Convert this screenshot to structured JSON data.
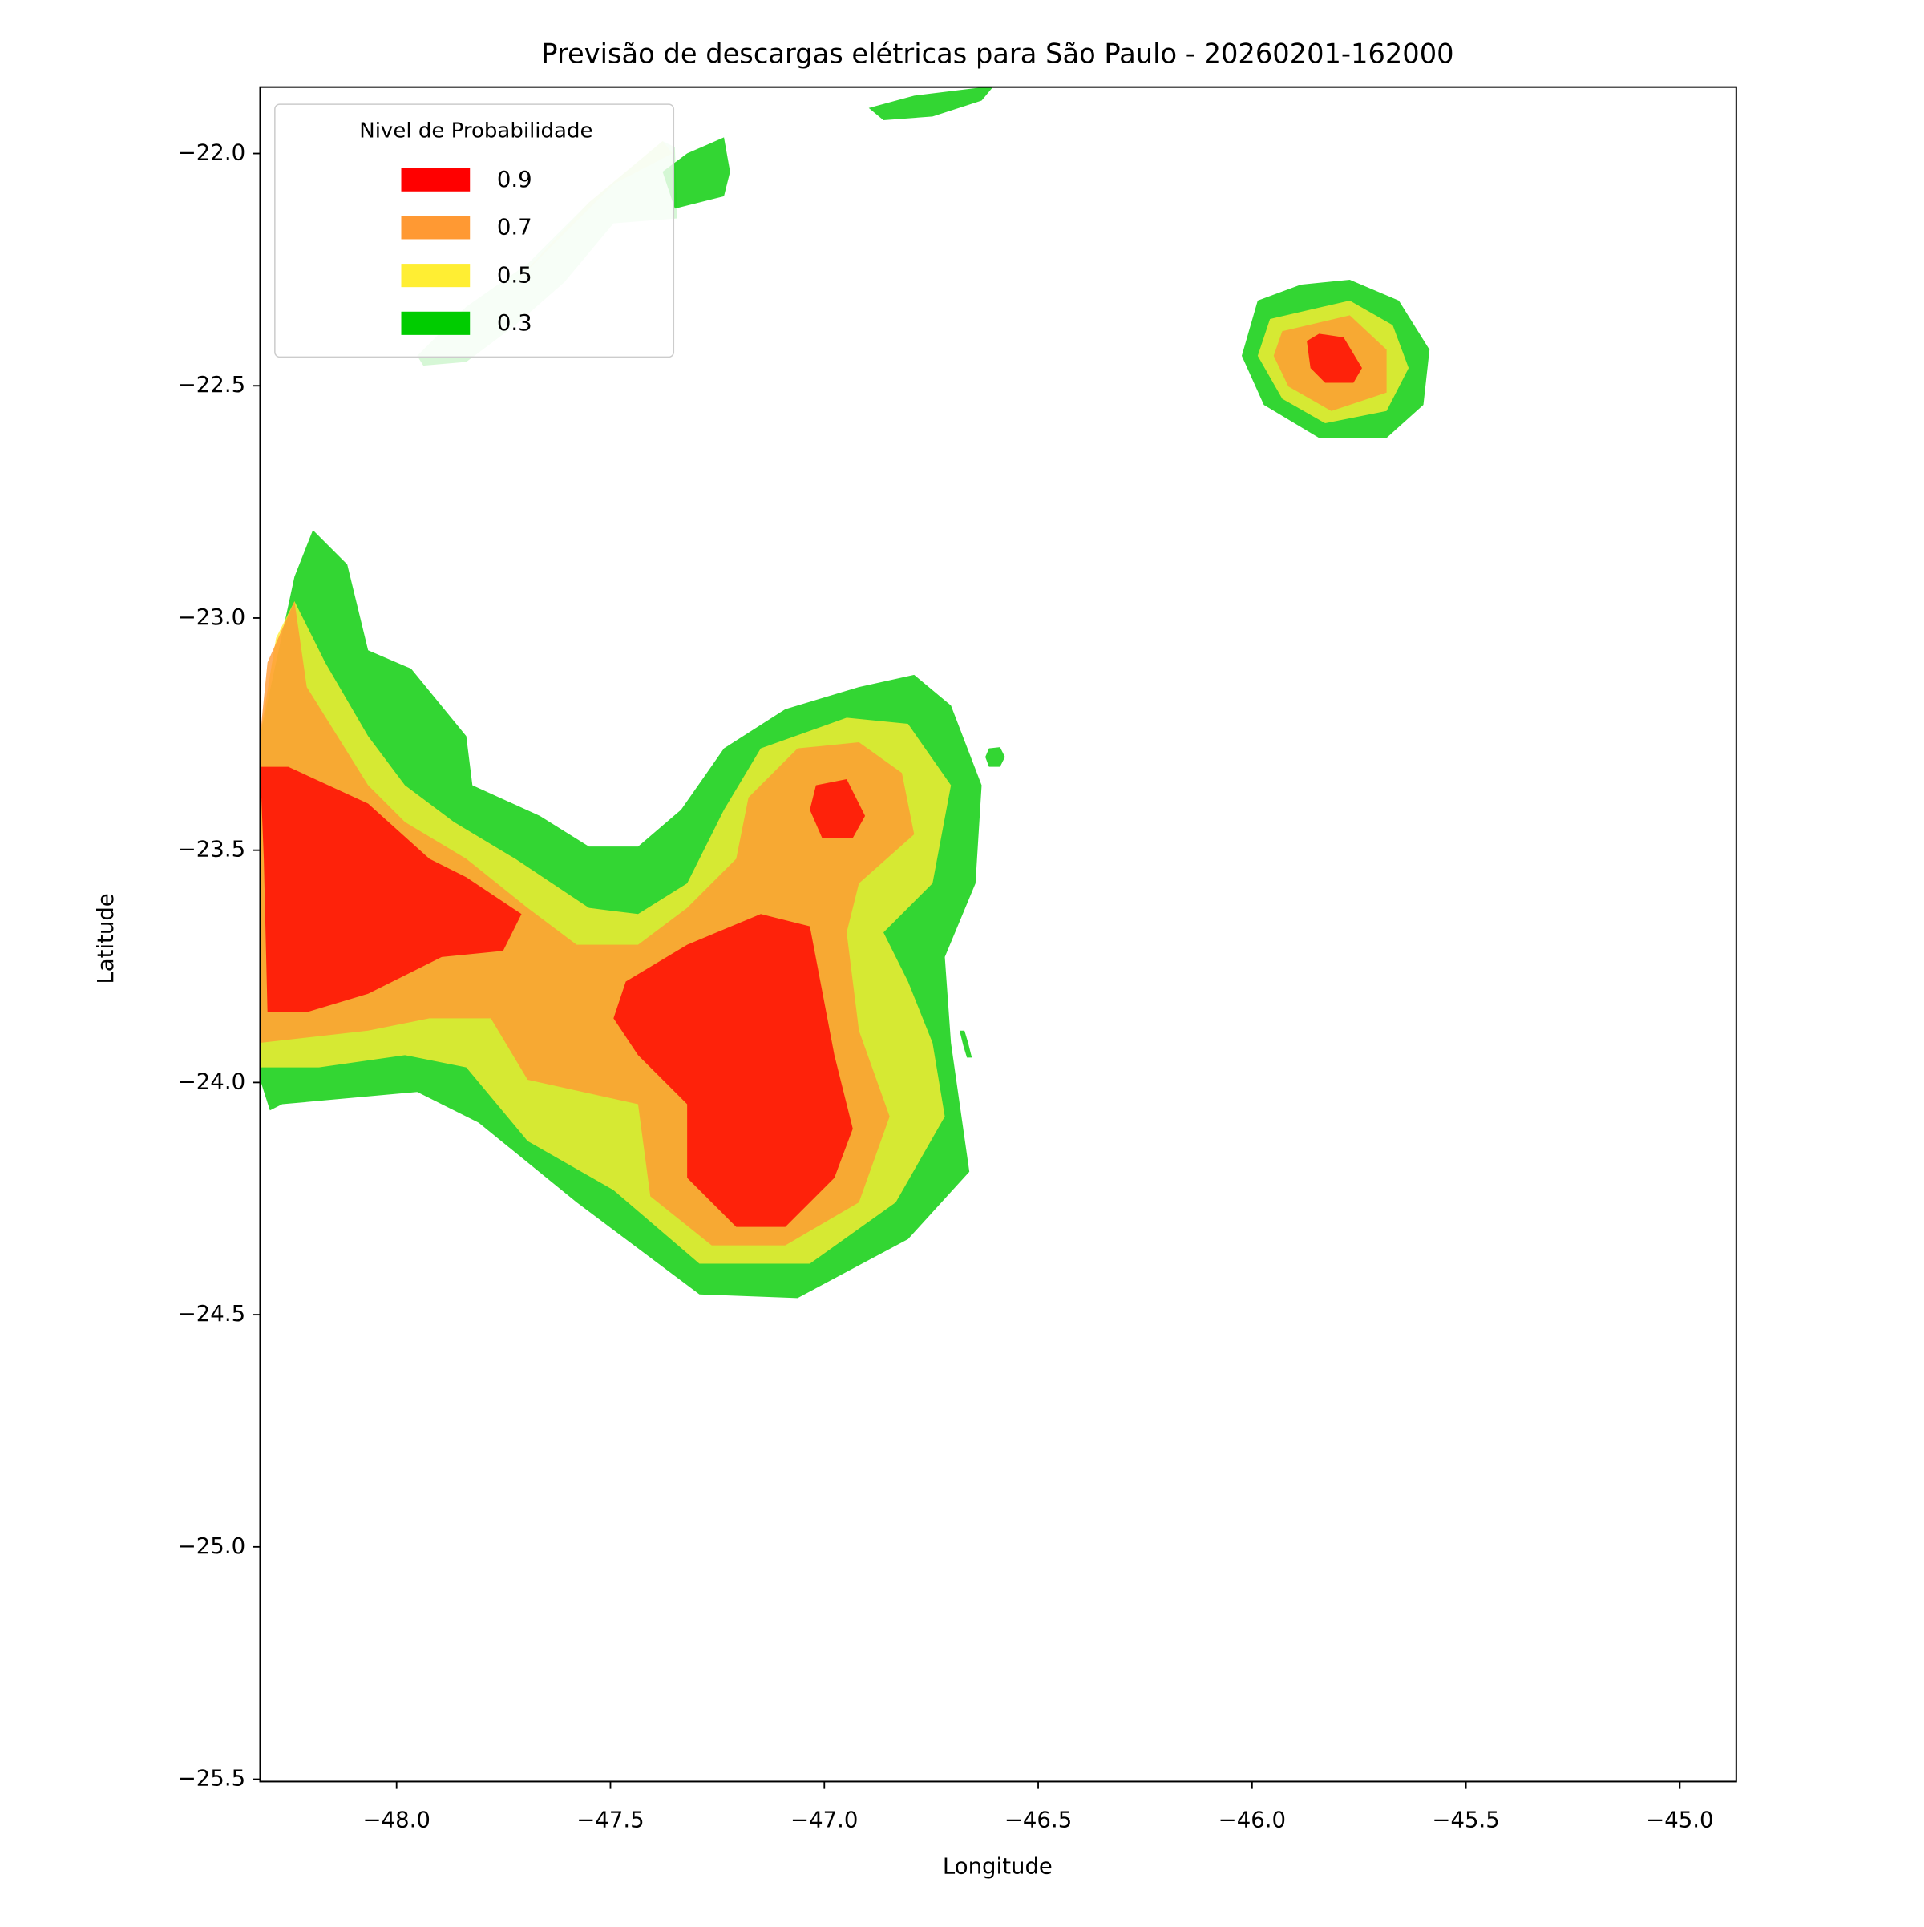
{
  "chart_data": {
    "type": "contour",
    "title": "Previsão de descargas elétricas para São Paulo - 20260201-162000",
    "x_label": "Longitude",
    "y_label": "Latitude",
    "xlim": [
      -48.319,
      -44.868
    ],
    "ylim": [
      -25.505,
      -21.857
    ],
    "xticks": [
      {
        "value": -48,
        "label": "−48.0"
      },
      {
        "value": -47.5,
        "label": "−47.5"
      },
      {
        "value": -47,
        "label": "−47.0"
      },
      {
        "value": -46.5,
        "label": "−46.5"
      },
      {
        "value": -46,
        "label": "−46.0"
      },
      {
        "value": -45.5,
        "label": "−45.5"
      },
      {
        "value": -45,
        "label": "−45.0"
      }
    ],
    "yticks": [
      {
        "value": -22,
        "label": "−22.0"
      },
      {
        "value": -22.5,
        "label": "−22.5"
      },
      {
        "value": -23,
        "label": "−23.0"
      },
      {
        "value": -23.5,
        "label": "−23.5"
      },
      {
        "value": -24,
        "label": "−24.0"
      },
      {
        "value": -24.5,
        "label": "−24.5"
      },
      {
        "value": -25,
        "label": "−25.0"
      },
      {
        "value": -25.5,
        "label": "−25.5"
      }
    ],
    "legend": {
      "title": "Nivel de Probabilidade",
      "position": "upper left",
      "levels": [
        0.9,
        0.7,
        0.5,
        0.3
      ],
      "colors": [
        "#ff0000",
        "#ff9933",
        "#ffee33",
        "#00cc00"
      ]
    }
  }
}
